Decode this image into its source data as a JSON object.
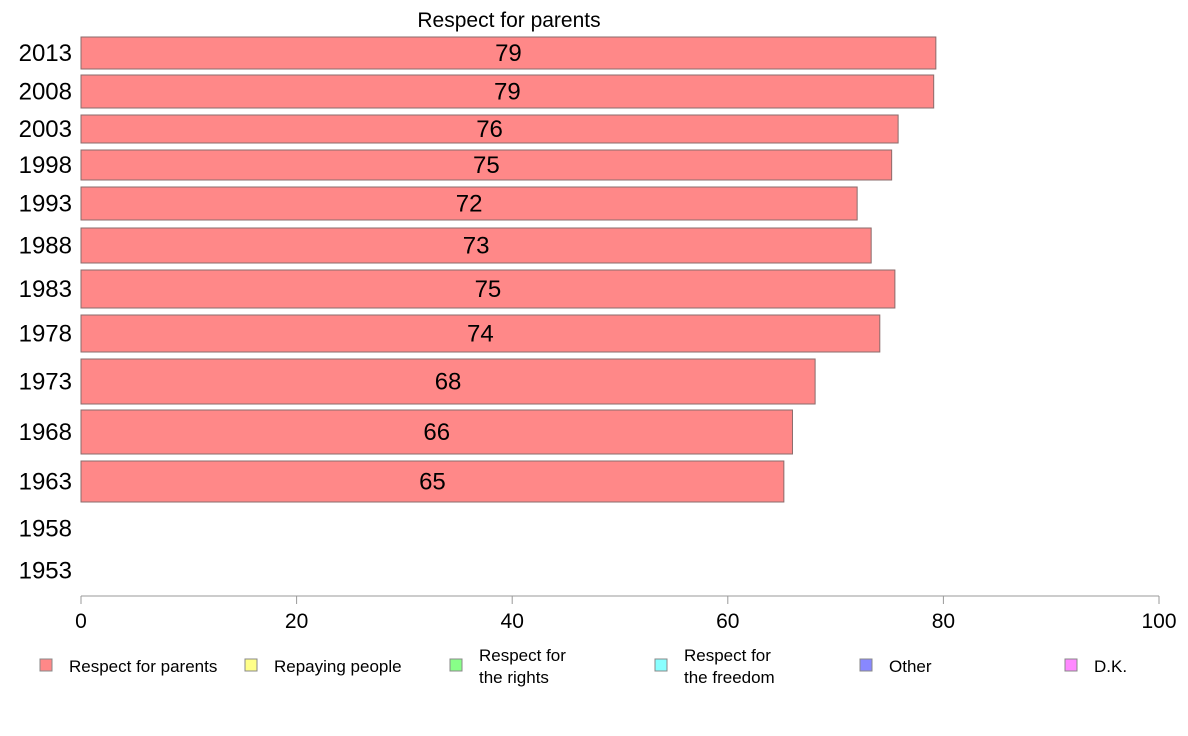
{
  "chart_data": {
    "type": "bar",
    "orientation": "horizontal",
    "title": "Respect for parents",
    "categories": [
      "2013",
      "2008",
      "2003",
      "1998",
      "1993",
      "1988",
      "1983",
      "1978",
      "1973",
      "1968",
      "1963",
      "1958",
      "1953"
    ],
    "series": [
      {
        "name": "Respect for parents",
        "color": "#ff8888",
        "values": [
          79,
          79,
          76,
          75,
          72,
          73,
          75,
          74,
          68,
          66,
          65,
          null,
          null
        ],
        "value_positions": [
          79.3,
          79.1,
          75.8,
          75.2,
          72.0,
          73.3,
          75.5,
          74.1,
          68.1,
          66.0,
          65.2,
          null,
          null
        ]
      }
    ],
    "xlim": [
      0,
      100
    ],
    "xticks": [
      "0",
      "20",
      "40",
      "60",
      "80",
      "100"
    ],
    "grid": false,
    "legend": {
      "placement": "bottom",
      "entries": [
        {
          "label_lines": [
            "Respect for parents"
          ],
          "color": "#ff8888"
        },
        {
          "label_lines": [
            "Repaying people"
          ],
          "color": "#ffff88"
        },
        {
          "label_lines": [
            "Respect for",
            "the rights"
          ],
          "color": "#88ff88"
        },
        {
          "label_lines": [
            "Respect for",
            "the freedom"
          ],
          "color": "#88ffff"
        },
        {
          "label_lines": [
            "Other"
          ],
          "color": "#8888ff"
        },
        {
          "label_lines": [
            "D.K."
          ],
          "color": "#ff88ff"
        }
      ]
    }
  }
}
